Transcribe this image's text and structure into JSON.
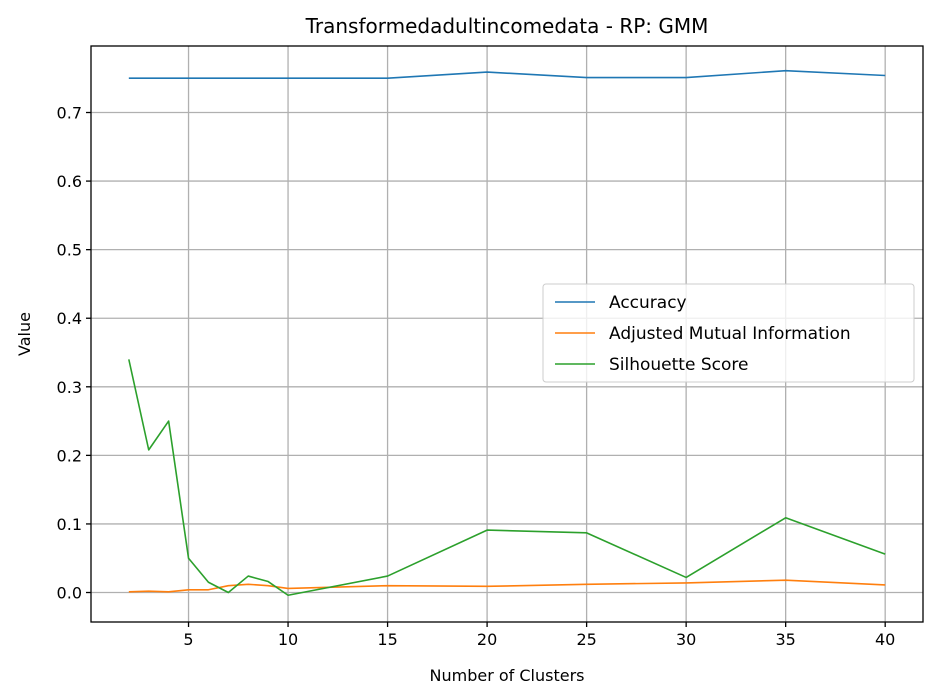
{
  "chart_data": {
    "type": "line",
    "title": "Transformedadultincomedata - RP: GMM",
    "xlabel": "Number of Clusters",
    "ylabel": "Value",
    "xlim": [
      0.1,
      41.9
    ],
    "ylim": [
      -0.043,
      0.797
    ],
    "xticks": [
      5,
      10,
      15,
      20,
      25,
      30,
      35,
      40
    ],
    "yticks": [
      0.0,
      0.1,
      0.2,
      0.3,
      0.4,
      0.5,
      0.6,
      0.7
    ],
    "ytick_labels": [
      "0.0",
      "0.1",
      "0.2",
      "0.3",
      "0.4",
      "0.5",
      "0.6",
      "0.7"
    ],
    "grid": true,
    "legend_position": "center-right",
    "x": [
      2,
      3,
      4,
      5,
      6,
      7,
      8,
      9,
      10,
      15,
      20,
      25,
      30,
      35,
      40
    ],
    "series": [
      {
        "name": "Accuracy",
        "color": "#1f77b4",
        "values": [
          0.75,
          0.75,
          0.75,
          0.75,
          0.75,
          0.75,
          0.75,
          0.75,
          0.75,
          0.75,
          0.759,
          0.751,
          0.751,
          0.761,
          0.754
        ]
      },
      {
        "name": "Adjusted Mutual Information",
        "color": "#ff7f0e",
        "values": [
          0.001,
          0.002,
          0.001,
          0.004,
          0.004,
          0.01,
          0.012,
          0.01,
          0.006,
          0.01,
          0.009,
          0.012,
          0.014,
          0.018,
          0.011
        ]
      },
      {
        "name": "Silhouette Score",
        "color": "#2ca02c",
        "values": [
          0.34,
          0.208,
          0.25,
          0.05,
          0.015,
          0.0,
          0.024,
          0.016,
          -0.004,
          0.024,
          0.091,
          0.087,
          0.022,
          0.109,
          0.056
        ]
      }
    ]
  }
}
